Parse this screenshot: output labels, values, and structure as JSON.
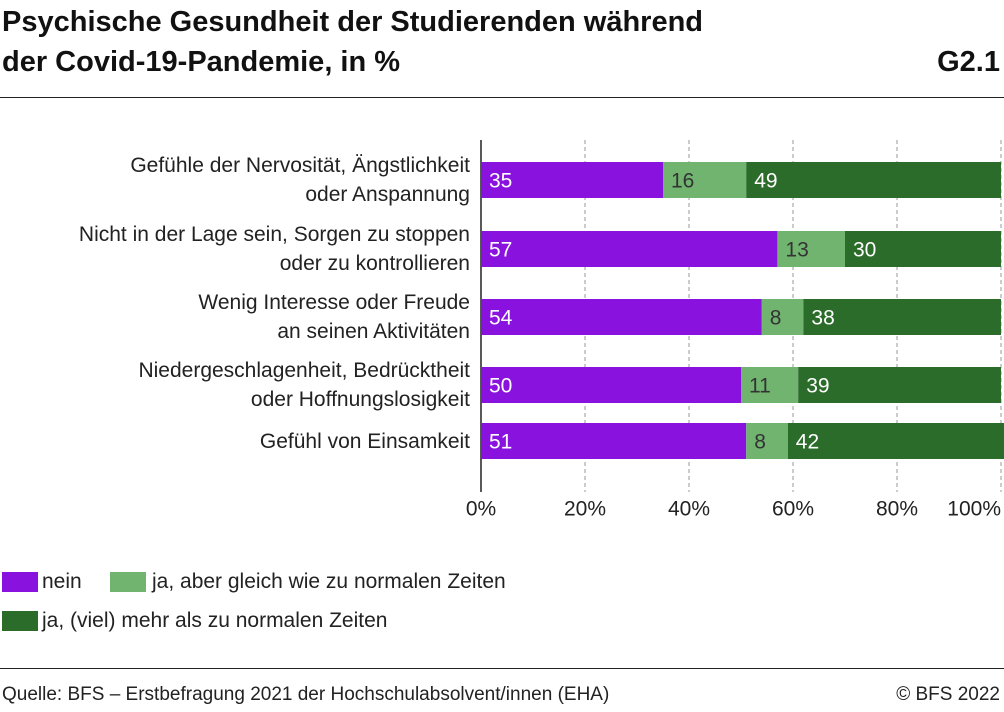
{
  "chart_data": {
    "type": "stacked-bar-horizontal",
    "title": "Psychische Gesundheit der Studierenden während\nder Covid-19-Pandemie, in %",
    "figure_id": "G2.1",
    "categories": [
      "Gefühle der Nervosität, Ängstlichkeit\noder Anspannung",
      "Nicht in der Lage sein, Sorgen zu stoppen\noder zu kontrollieren",
      "Wenig Interesse oder Freude\nan seinen Aktivitäten",
      "Niedergeschlagenheit, Bedrücktheit\noder Hoffnungslosigkeit",
      "Gefühl von Einsamkeit"
    ],
    "series": [
      {
        "name": "nein",
        "color": "#8a12df",
        "values": [
          35,
          57,
          54,
          50,
          51
        ]
      },
      {
        "name": "ja, aber gleich wie zu normalen Zeiten",
        "color": "#70b470",
        "values": [
          16,
          13,
          8,
          11,
          8
        ]
      },
      {
        "name": "ja, (viel) mehr als zu normalen Zeiten",
        "color": "#2b6c2b",
        "values": [
          49,
          30,
          38,
          39,
          42
        ]
      }
    ],
    "xlim": [
      0,
      100
    ],
    "xticks": [
      {
        "value": 0,
        "label": "0%"
      },
      {
        "value": 20,
        "label": "20%"
      },
      {
        "value": 40,
        "label": "40%"
      },
      {
        "value": 60,
        "label": "60%"
      },
      {
        "value": 80,
        "label": "80%"
      },
      {
        "value": 100,
        "label": "100%"
      }
    ],
    "grid": true,
    "source": "Quelle: BFS – Erstbefragung 2021 der Hochschulabsolvent/innen (EHA)",
    "copyright": "© BFS 2022"
  }
}
